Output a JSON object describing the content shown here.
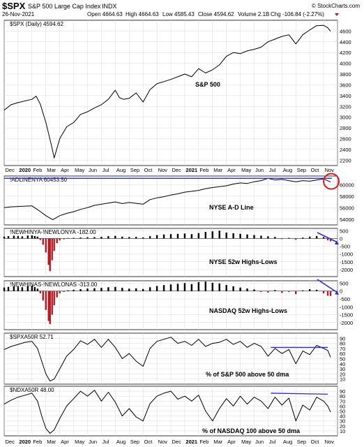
{
  "header": {
    "symbol": "$SPX",
    "name": "S&P 500 Large Cap Index",
    "exchange": "INDX",
    "date": "26-Nov-2021",
    "open": "Open 4664.63",
    "high": "High 4664.63",
    "low": "Low 4585.43",
    "close": "Close 4594.62",
    "volume": "Volume 2.1B",
    "chg": "Chg -106.84 (-2.27%)",
    "copyright": "© StockCharts.com"
  },
  "colors": {
    "line": "#000000",
    "negative_bar": "#b01c24",
    "trend_line": "#2a2ae0",
    "highlight": "#e01818",
    "grid": "#d8d8d8"
  },
  "x_axis_labels": [
    "Dec",
    "2020",
    "Feb",
    "Mar",
    "Apr",
    "May",
    "Jun",
    "Jul",
    "Aug",
    "Sep",
    "Oct",
    "Nov",
    "Dec",
    "2021",
    "Feb",
    "Mar",
    "Apr",
    "May",
    "Jun",
    "Jul",
    "Aug",
    "Sep",
    "Oct",
    "Nov"
  ],
  "chart_data": [
    {
      "type": "line",
      "legend": "$SPX (Daily) 4594.62",
      "annotation": "S&P 500",
      "ylim": [
        2100,
        4800
      ],
      "yticks": [
        2200,
        2400,
        2600,
        2800,
        3000,
        3200,
        3400,
        3600,
        3800,
        4000,
        4200,
        4400,
        4600
      ],
      "points": [
        [
          0,
          3130
        ],
        [
          0.5,
          3230
        ],
        [
          1,
          3270
        ],
        [
          2,
          3330
        ],
        [
          2.3,
          3390
        ],
        [
          2.6,
          3240
        ],
        [
          3,
          2900
        ],
        [
          3.4,
          2480
        ],
        [
          3.6,
          2240
        ],
        [
          4,
          2600
        ],
        [
          4.5,
          2820
        ],
        [
          5,
          2900
        ],
        [
          5.5,
          3050
        ],
        [
          6,
          3100
        ],
        [
          6.5,
          3170
        ],
        [
          7,
          3230
        ],
        [
          7.5,
          3330
        ],
        [
          8,
          3500
        ],
        [
          8.3,
          3360
        ],
        [
          8.6,
          3330
        ],
        [
          9,
          3350
        ],
        [
          9.5,
          3450
        ],
        [
          10,
          3280
        ],
        [
          10.5,
          3510
        ],
        [
          11,
          3620
        ],
        [
          12,
          3700
        ],
        [
          12.5,
          3750
        ],
        [
          13,
          3800
        ],
        [
          13.5,
          3750
        ],
        [
          14,
          3900
        ],
        [
          14.5,
          3820
        ],
        [
          15,
          3880
        ],
        [
          15.5,
          3970
        ],
        [
          16,
          4130
        ],
        [
          16.5,
          4200
        ],
        [
          17,
          4180
        ],
        [
          17.5,
          4230
        ],
        [
          18,
          4260
        ],
        [
          18.5,
          4300
        ],
        [
          19,
          4400
        ],
        [
          19.5,
          4450
        ],
        [
          20,
          4500
        ],
        [
          20.5,
          4530
        ],
        [
          21,
          4360
        ],
        [
          21.5,
          4530
        ],
        [
          22,
          4620
        ],
        [
          22.5,
          4700
        ],
        [
          23,
          4705
        ],
        [
          23.3,
          4660
        ],
        [
          23.5,
          4594.62
        ]
      ]
    },
    {
      "type": "line",
      "legend": "!ADLINENYA 60453.50",
      "annotation": "NYSE A-D Line",
      "ylim": [
        53000,
        61500
      ],
      "yticks": [
        54000,
        56000,
        58000,
        60000
      ],
      "ytick_labels": [
        "54000",
        "56000",
        "58000",
        "60000"
      ],
      "trend_line": [
        [
          0,
          61100
        ],
        [
          23.6,
          61100
        ]
      ],
      "points": [
        [
          0,
          56000
        ],
        [
          0.5,
          56150
        ],
        [
          1,
          56200
        ],
        [
          2,
          56300
        ],
        [
          2.5,
          55500
        ],
        [
          3,
          54600
        ],
        [
          3.5,
          53900
        ],
        [
          4,
          54600
        ],
        [
          4.5,
          55000
        ],
        [
          5,
          55300
        ],
        [
          5.5,
          55700
        ],
        [
          6,
          56000
        ],
        [
          6.5,
          56400
        ],
        [
          7,
          56600
        ],
        [
          8,
          57000
        ],
        [
          8.5,
          56700
        ],
        [
          9,
          56900
        ],
        [
          10,
          56600
        ],
        [
          10.5,
          57400
        ],
        [
          11,
          57700
        ],
        [
          11.5,
          57900
        ],
        [
          12,
          58200
        ],
        [
          12.5,
          58400
        ],
        [
          13,
          58700
        ],
        [
          14,
          59000
        ],
        [
          14.5,
          59300
        ],
        [
          15,
          59500
        ],
        [
          16,
          59800
        ],
        [
          16.5,
          60100
        ],
        [
          17,
          60300
        ],
        [
          17.5,
          60200
        ],
        [
          18,
          60500
        ],
        [
          18.5,
          60700
        ],
        [
          19,
          61100
        ],
        [
          19.5,
          60800
        ],
        [
          20,
          60900
        ],
        [
          20.5,
          60700
        ],
        [
          21,
          60500
        ],
        [
          21.5,
          60700
        ],
        [
          22,
          60600
        ],
        [
          22.5,
          60800
        ],
        [
          23,
          61000
        ],
        [
          23.5,
          60453.5
        ]
      ]
    },
    {
      "type": "bar",
      "legend": "!NEWHINYA-!NEWLONYA -182.00",
      "annotation": "NYSE 52w Highs-Lows",
      "ylim": [
        -2450,
        650
      ],
      "yticks": [
        -2000,
        -1500,
        -1000,
        -500,
        0,
        500
      ],
      "bars": [
        [
          0,
          120
        ],
        [
          0.3,
          150
        ],
        [
          0.7,
          180
        ],
        [
          1,
          160
        ],
        [
          1.3,
          140
        ],
        [
          1.7,
          190
        ],
        [
          2,
          200
        ],
        [
          2.2,
          160
        ],
        [
          2.4,
          120
        ],
        [
          2.6,
          -100
        ],
        [
          2.8,
          -400
        ],
        [
          3,
          -900
        ],
        [
          3.2,
          -1700
        ],
        [
          3.3,
          -2100
        ],
        [
          3.45,
          -1400
        ],
        [
          3.6,
          -800
        ],
        [
          3.8,
          -300
        ],
        [
          4,
          -120
        ],
        [
          4.3,
          -50
        ],
        [
          4.6,
          30
        ],
        [
          5,
          40
        ],
        [
          5.5,
          60
        ],
        [
          6,
          80
        ],
        [
          6.5,
          90
        ],
        [
          7,
          110
        ],
        [
          7.5,
          150
        ],
        [
          8,
          170
        ],
        [
          8.5,
          120
        ],
        [
          9,
          90
        ],
        [
          9.5,
          100
        ],
        [
          10,
          70
        ],
        [
          10.5,
          150
        ],
        [
          11,
          220
        ],
        [
          11.5,
          260
        ],
        [
          12,
          280
        ],
        [
          12.5,
          300
        ],
        [
          13,
          320
        ],
        [
          13.5,
          280
        ],
        [
          14,
          350
        ],
        [
          14.5,
          420
        ],
        [
          15,
          460
        ],
        [
          15.5,
          500
        ],
        [
          16,
          380
        ],
        [
          16.5,
          340
        ],
        [
          17,
          300
        ],
        [
          17.5,
          260
        ],
        [
          18,
          220
        ],
        [
          18.5,
          180
        ],
        [
          19,
          140
        ],
        [
          19.5,
          100
        ],
        [
          20,
          -40
        ],
        [
          20.5,
          40
        ],
        [
          21,
          -80
        ],
        [
          21.5,
          60
        ],
        [
          22,
          120
        ],
        [
          22.5,
          160
        ],
        [
          23,
          90
        ],
        [
          23.3,
          -120
        ],
        [
          23.5,
          -182
        ]
      ]
    },
    {
      "type": "bar",
      "legend": "!NEWHINAS-!NEWLONAS -313.00",
      "annotation": "NASDAQ 52w Highs-Lows",
      "ylim": [
        -2450,
        650
      ],
      "yticks": [
        -2000,
        -1500,
        -1000,
        -500,
        0,
        500
      ],
      "bars": [
        [
          0,
          220
        ],
        [
          0.3,
          260
        ],
        [
          0.7,
          300
        ],
        [
          1,
          280
        ],
        [
          1.3,
          240
        ],
        [
          1.7,
          320
        ],
        [
          2,
          330
        ],
        [
          2.2,
          250
        ],
        [
          2.4,
          150
        ],
        [
          2.6,
          -150
        ],
        [
          2.8,
          -600
        ],
        [
          3,
          -1200
        ],
        [
          3.2,
          -1900
        ],
        [
          3.3,
          -2100
        ],
        [
          3.45,
          -1500
        ],
        [
          3.6,
          -900
        ],
        [
          3.8,
          -400
        ],
        [
          4,
          -150
        ],
        [
          4.3,
          -60
        ],
        [
          4.6,
          40
        ],
        [
          5,
          80
        ],
        [
          5.5,
          120
        ],
        [
          6,
          160
        ],
        [
          6.5,
          180
        ],
        [
          7,
          200
        ],
        [
          7.5,
          240
        ],
        [
          8,
          260
        ],
        [
          8.5,
          200
        ],
        [
          9,
          150
        ],
        [
          9.5,
          170
        ],
        [
          10,
          130
        ],
        [
          10.5,
          240
        ],
        [
          11,
          320
        ],
        [
          11.5,
          380
        ],
        [
          12,
          420
        ],
        [
          12.5,
          460
        ],
        [
          13,
          500
        ],
        [
          13.5,
          440
        ],
        [
          14,
          560
        ],
        [
          14.5,
          600
        ],
        [
          15,
          520
        ],
        [
          15.5,
          480
        ],
        [
          16,
          380
        ],
        [
          16.5,
          300
        ],
        [
          17,
          220
        ],
        [
          17.5,
          160
        ],
        [
          18,
          100
        ],
        [
          18.5,
          -60
        ],
        [
          19,
          -100
        ],
        [
          19.5,
          60
        ],
        [
          20,
          -120
        ],
        [
          20.5,
          -60
        ],
        [
          21,
          -200
        ],
        [
          21.5,
          40
        ],
        [
          22,
          120
        ],
        [
          22.5,
          80
        ],
        [
          23,
          -150
        ],
        [
          23.3,
          -300
        ],
        [
          23.5,
          -313
        ]
      ]
    },
    {
      "type": "line",
      "legend": "$SPXA50R 52.71",
      "annotation": "% of S&P 500 above 50 dma",
      "ylim": [
        0,
        100
      ],
      "yticks": [
        10,
        20,
        30,
        40,
        50,
        60,
        70,
        80,
        90
      ],
      "trend_line": [
        [
          19.2,
          72
        ],
        [
          23.3,
          72
        ]
      ],
      "points": [
        [
          0,
          68
        ],
        [
          0.5,
          74
        ],
        [
          1,
          78
        ],
        [
          1.5,
          82
        ],
        [
          2,
          84
        ],
        [
          2.4,
          70
        ],
        [
          2.7,
          45
        ],
        [
          3,
          20
        ],
        [
          3.3,
          6
        ],
        [
          3.6,
          10
        ],
        [
          4,
          30
        ],
        [
          4.5,
          55
        ],
        [
          5,
          68
        ],
        [
          5.5,
          85
        ],
        [
          6,
          78
        ],
        [
          6.5,
          88
        ],
        [
          7,
          72
        ],
        [
          7.5,
          88
        ],
        [
          8,
          72
        ],
        [
          8.5,
          50
        ],
        [
          9,
          60
        ],
        [
          9.5,
          45
        ],
        [
          10,
          35
        ],
        [
          10.5,
          70
        ],
        [
          11,
          84
        ],
        [
          11.5,
          88
        ],
        [
          12,
          92
        ],
        [
          12.5,
          80
        ],
        [
          13,
          84
        ],
        [
          13.5,
          76
        ],
        [
          14,
          88
        ],
        [
          14.5,
          74
        ],
        [
          15,
          80
        ],
        [
          15.5,
          82
        ],
        [
          16,
          88
        ],
        [
          16.5,
          78
        ],
        [
          17,
          84
        ],
        [
          17.5,
          72
        ],
        [
          18,
          80
        ],
        [
          18.5,
          74
        ],
        [
          19,
          55
        ],
        [
          19.5,
          70
        ],
        [
          20,
          60
        ],
        [
          20.5,
          68
        ],
        [
          21,
          40
        ],
        [
          21.5,
          65
        ],
        [
          22,
          58
        ],
        [
          22.5,
          76
        ],
        [
          23,
          70
        ],
        [
          23.3,
          66
        ],
        [
          23.5,
          52.71
        ]
      ]
    },
    {
      "type": "line",
      "legend": "$NDXA50R 48.00",
      "annotation": "% of NASDAQ 100 above 50 dma",
      "ylim": [
        0,
        100
      ],
      "yticks": [
        10,
        20,
        30,
        40,
        50,
        60,
        70,
        80,
        90
      ],
      "trend_line": [
        [
          19.2,
          86
        ],
        [
          23.3,
          84
        ]
      ],
      "points": [
        [
          0,
          64
        ],
        [
          0.5,
          72
        ],
        [
          1,
          78
        ],
        [
          1.5,
          82
        ],
        [
          2,
          86
        ],
        [
          2.4,
          70
        ],
        [
          2.7,
          40
        ],
        [
          3,
          15
        ],
        [
          3.3,
          5
        ],
        [
          3.6,
          12
        ],
        [
          4,
          35
        ],
        [
          4.5,
          60
        ],
        [
          5,
          75
        ],
        [
          5.5,
          90
        ],
        [
          6,
          80
        ],
        [
          6.5,
          92
        ],
        [
          7,
          70
        ],
        [
          7.5,
          88
        ],
        [
          8,
          68
        ],
        [
          8.5,
          40
        ],
        [
          9,
          55
        ],
        [
          9.5,
          38
        ],
        [
          10,
          30
        ],
        [
          10.5,
          65
        ],
        [
          11,
          80
        ],
        [
          11.5,
          86
        ],
        [
          12,
          90
        ],
        [
          12.5,
          74
        ],
        [
          13,
          80
        ],
        [
          13.5,
          70
        ],
        [
          14,
          82
        ],
        [
          14.5,
          50
        ],
        [
          15,
          30
        ],
        [
          15.5,
          55
        ],
        [
          16,
          75
        ],
        [
          16.5,
          60
        ],
        [
          17,
          80
        ],
        [
          17.5,
          64
        ],
        [
          18,
          78
        ],
        [
          18.5,
          70
        ],
        [
          19,
          55
        ],
        [
          19.5,
          78
        ],
        [
          20,
          62
        ],
        [
          20.5,
          76
        ],
        [
          21,
          30
        ],
        [
          21.5,
          62
        ],
        [
          22,
          52
        ],
        [
          22.5,
          78
        ],
        [
          23,
          70
        ],
        [
          23.3,
          60
        ],
        [
          23.5,
          48
        ]
      ]
    }
  ]
}
